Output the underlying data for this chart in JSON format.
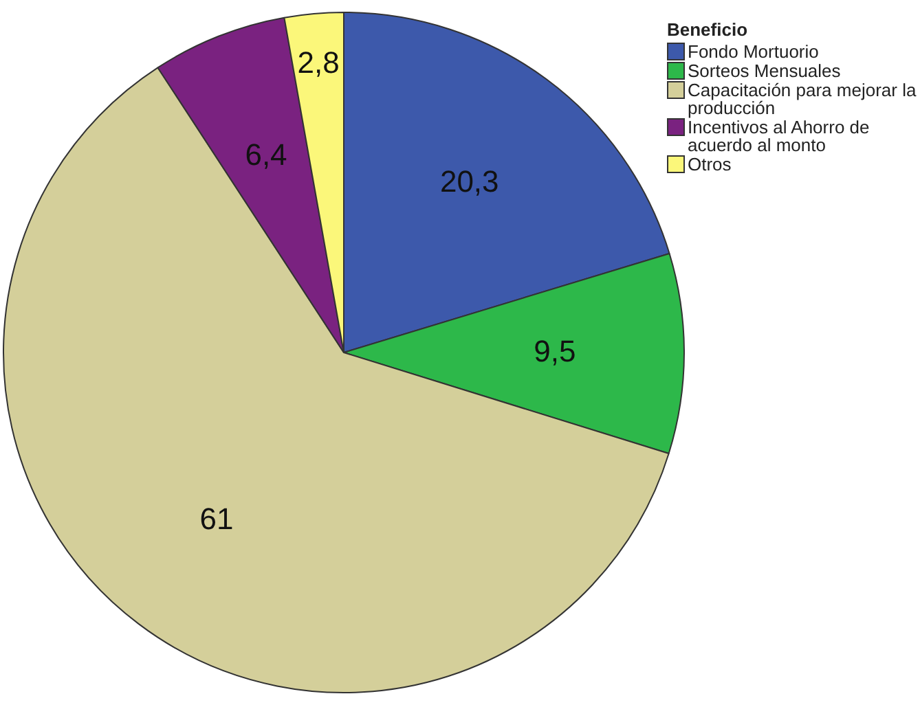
{
  "chart_data": {
    "type": "pie",
    "legend_title": "Beneficio",
    "categories": [
      "Fondo Mortuorio",
      "Sorteos Mensuales",
      "Capacitación para mejorar la producción",
      "Incentivos al Ahorro de acuerdo al monto",
      "Otros"
    ],
    "values": [
      20.3,
      9.5,
      61,
      6.4,
      2.8
    ],
    "colors": [
      "#3d59ab",
      "#2db84a",
      "#d4cf9a",
      "#7a2280",
      "#fbf77a"
    ],
    "value_labels": [
      "20,3",
      "9,5",
      "61",
      "6,4",
      "2,8"
    ],
    "legend": "top right"
  }
}
